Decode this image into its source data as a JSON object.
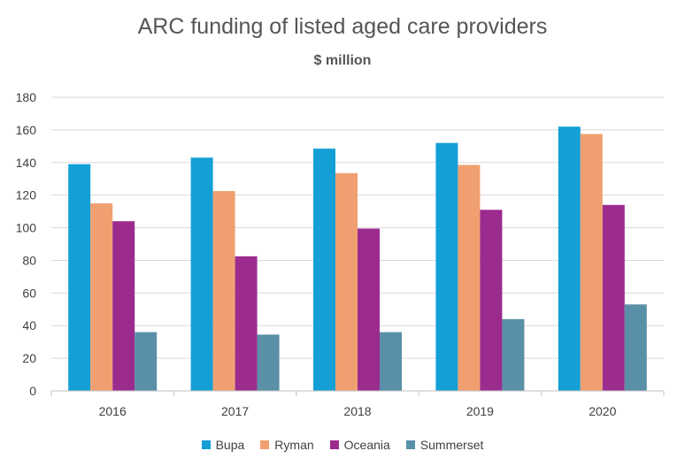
{
  "chart_data": {
    "type": "bar",
    "title": "ARC funding of listed aged care providers",
    "subtitle": "$ million",
    "xlabel": "",
    "ylabel": "",
    "ylim": [
      0,
      180
    ],
    "yticks": [
      0,
      20,
      40,
      60,
      80,
      100,
      120,
      140,
      160,
      180
    ],
    "grid": true,
    "legend_position": "bottom",
    "categories": [
      "2016",
      "2017",
      "2018",
      "2019",
      "2020"
    ],
    "series": [
      {
        "name": "Bupa",
        "color": "#149fd6",
        "values": [
          139,
          143,
          148.5,
          152,
          162
        ]
      },
      {
        "name": "Ryman",
        "color": "#f0a070",
        "values": [
          115,
          122.5,
          133.5,
          138.5,
          157.5
        ]
      },
      {
        "name": "Oceania",
        "color": "#9c2b8e",
        "values": [
          104,
          82.5,
          99.5,
          111,
          114
        ]
      },
      {
        "name": "Summerset",
        "color": "#5a8fa8",
        "values": [
          36,
          34.5,
          36,
          44,
          53
        ]
      }
    ]
  }
}
